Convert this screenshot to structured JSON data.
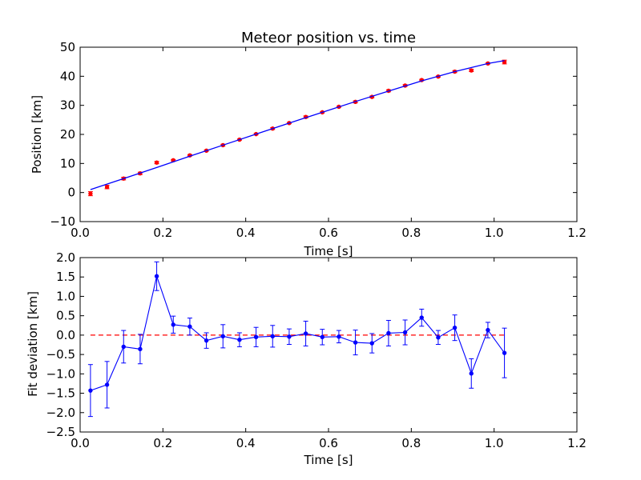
{
  "figure_background": "#ffffff",
  "chart_data": [
    {
      "type": "scatter",
      "title": "Meteor position vs. time",
      "xlabel": "Time [s]",
      "ylabel": "Position [km]",
      "xlim": [
        0.0,
        1.2
      ],
      "ylim": [
        -10,
        50
      ],
      "xticks": [
        0.0,
        0.2,
        0.4,
        0.6,
        0.8,
        1.0,
        1.2
      ],
      "xtick_labels": [
        "0.0",
        "0.2",
        "0.4",
        "0.6",
        "0.8",
        "1.0",
        "1.2"
      ],
      "yticks": [
        -10,
        0,
        10,
        20,
        30,
        40,
        50
      ],
      "ytick_labels": [
        "−10",
        "0",
        "10",
        "20",
        "30",
        "40",
        "50"
      ],
      "grid": false,
      "series": [
        {
          "kind": "scatter-errorbar",
          "color": "#ff0000",
          "errorbar_color": "#ff0000",
          "x": [
            0.025,
            0.065,
            0.105,
            0.145,
            0.185,
            0.225,
            0.265,
            0.305,
            0.345,
            0.385,
            0.425,
            0.465,
            0.505,
            0.545,
            0.585,
            0.625,
            0.665,
            0.705,
            0.745,
            0.785,
            0.825,
            0.865,
            0.905,
            0.945,
            0.985,
            1.025
          ],
          "y": [
            -0.4,
            1.9,
            4.8,
            6.6,
            10.3,
            11.1,
            12.8,
            14.4,
            16.3,
            18.2,
            20.1,
            22.0,
            23.9,
            26.0,
            27.6,
            29.5,
            31.2,
            32.9,
            35.0,
            36.8,
            38.7,
            39.9,
            41.6,
            42.0,
            44.4,
            44.9
          ],
          "yerr": [
            0.7,
            0.6,
            0.45,
            0.4,
            0.4,
            0.25,
            0.25,
            0.2,
            0.3,
            0.2,
            0.25,
            0.3,
            0.2,
            0.35,
            0.2,
            0.2,
            0.35,
            0.3,
            0.35,
            0.3,
            0.25,
            0.2,
            0.35,
            0.4,
            0.2,
            0.65
          ]
        },
        {
          "kind": "line",
          "color": "#0000ff",
          "x": [
            0.025,
            0.105,
            0.185,
            0.265,
            0.345,
            0.425,
            0.505,
            0.585,
            0.665,
            0.745,
            0.825,
            0.905,
            0.985,
            1.025
          ],
          "y": [
            1.0,
            4.8,
            8.6,
            12.5,
            16.3,
            20.1,
            23.9,
            27.6,
            31.3,
            34.9,
            38.4,
            41.6,
            44.4,
            45.4
          ]
        }
      ]
    },
    {
      "type": "line",
      "xlabel": "Time [s]",
      "ylabel": "Fit deviation [km]",
      "xlim": [
        0.0,
        1.2
      ],
      "ylim": [
        -2.5,
        2.0
      ],
      "xticks": [
        0.0,
        0.2,
        0.4,
        0.6,
        0.8,
        1.0,
        1.2
      ],
      "xtick_labels": [
        "0.0",
        "0.2",
        "0.4",
        "0.6",
        "0.8",
        "1.0",
        "1.2"
      ],
      "yticks": [
        -2.5,
        -2.0,
        -1.5,
        -1.0,
        -0.5,
        0.0,
        0.5,
        1.0,
        1.5,
        2.0
      ],
      "ytick_labels": [
        "−2.5",
        "−2.0",
        "−1.5",
        "−1.0",
        "−0.5",
        "0.0",
        "0.5",
        "1.0",
        "1.5",
        "2.0"
      ],
      "grid": false,
      "reference_line": {
        "y": 0.0,
        "style": "dashed",
        "color": "#ff0000",
        "x_range": [
          0.025,
          1.025
        ]
      },
      "series": [
        {
          "kind": "line-errorbar",
          "color": "#0000ff",
          "x": [
            0.025,
            0.065,
            0.105,
            0.145,
            0.185,
            0.225,
            0.265,
            0.305,
            0.345,
            0.385,
            0.425,
            0.465,
            0.505,
            0.545,
            0.585,
            0.625,
            0.665,
            0.705,
            0.745,
            0.785,
            0.825,
            0.865,
            0.905,
            0.945,
            0.985,
            1.025
          ],
          "y": [
            -1.43,
            -1.28,
            -0.3,
            -0.36,
            1.52,
            0.27,
            0.22,
            -0.14,
            -0.03,
            -0.12,
            -0.05,
            -0.03,
            -0.04,
            0.04,
            -0.05,
            -0.04,
            -0.19,
            -0.21,
            0.05,
            0.07,
            0.45,
            -0.06,
            0.19,
            -0.99,
            0.13,
            -0.46
          ],
          "yerr": [
            0.67,
            0.6,
            0.42,
            0.38,
            0.37,
            0.22,
            0.22,
            0.2,
            0.3,
            0.18,
            0.25,
            0.28,
            0.2,
            0.32,
            0.2,
            0.16,
            0.32,
            0.25,
            0.33,
            0.32,
            0.22,
            0.18,
            0.33,
            0.38,
            0.2,
            0.64
          ]
        }
      ]
    }
  ]
}
